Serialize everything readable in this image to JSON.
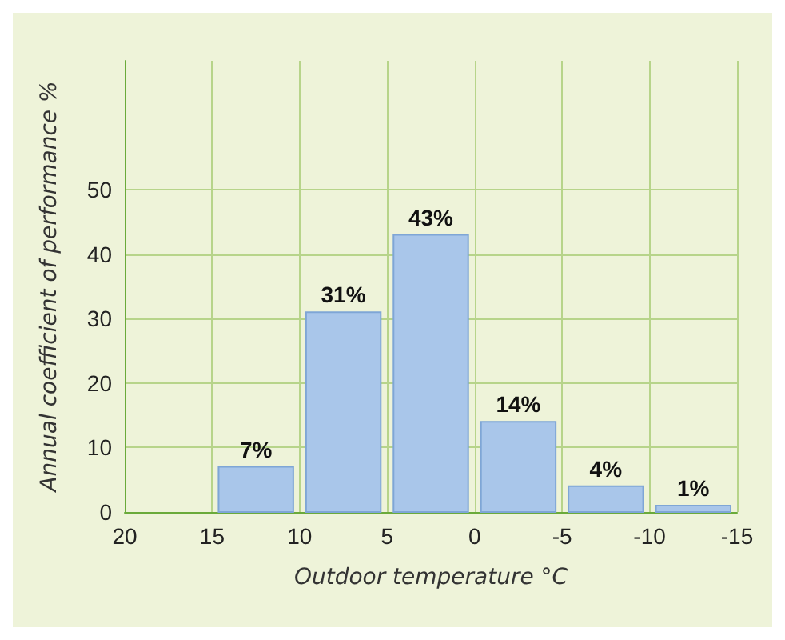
{
  "chart_data": {
    "type": "histogram",
    "xlabel": "Outdoor temperature °C",
    "ylabel": "Annual coefficient of performance %",
    "bins": [
      15,
      10,
      5,
      0,
      -5,
      -10,
      -15
    ],
    "values": [
      7,
      31,
      43,
      14,
      4,
      1
    ],
    "value_labels": [
      "7%",
      "31%",
      "43%",
      "14%",
      "4%",
      "1%"
    ],
    "color": "#a9c6ea",
    "xlim": [
      20,
      -15
    ],
    "xticks": [
      20,
      15,
      10,
      5,
      0,
      -5,
      -10,
      -15
    ],
    "ylim": [
      0,
      70
    ],
    "yticks": [
      0,
      10,
      20,
      30,
      40,
      50
    ],
    "grid": true
  }
}
